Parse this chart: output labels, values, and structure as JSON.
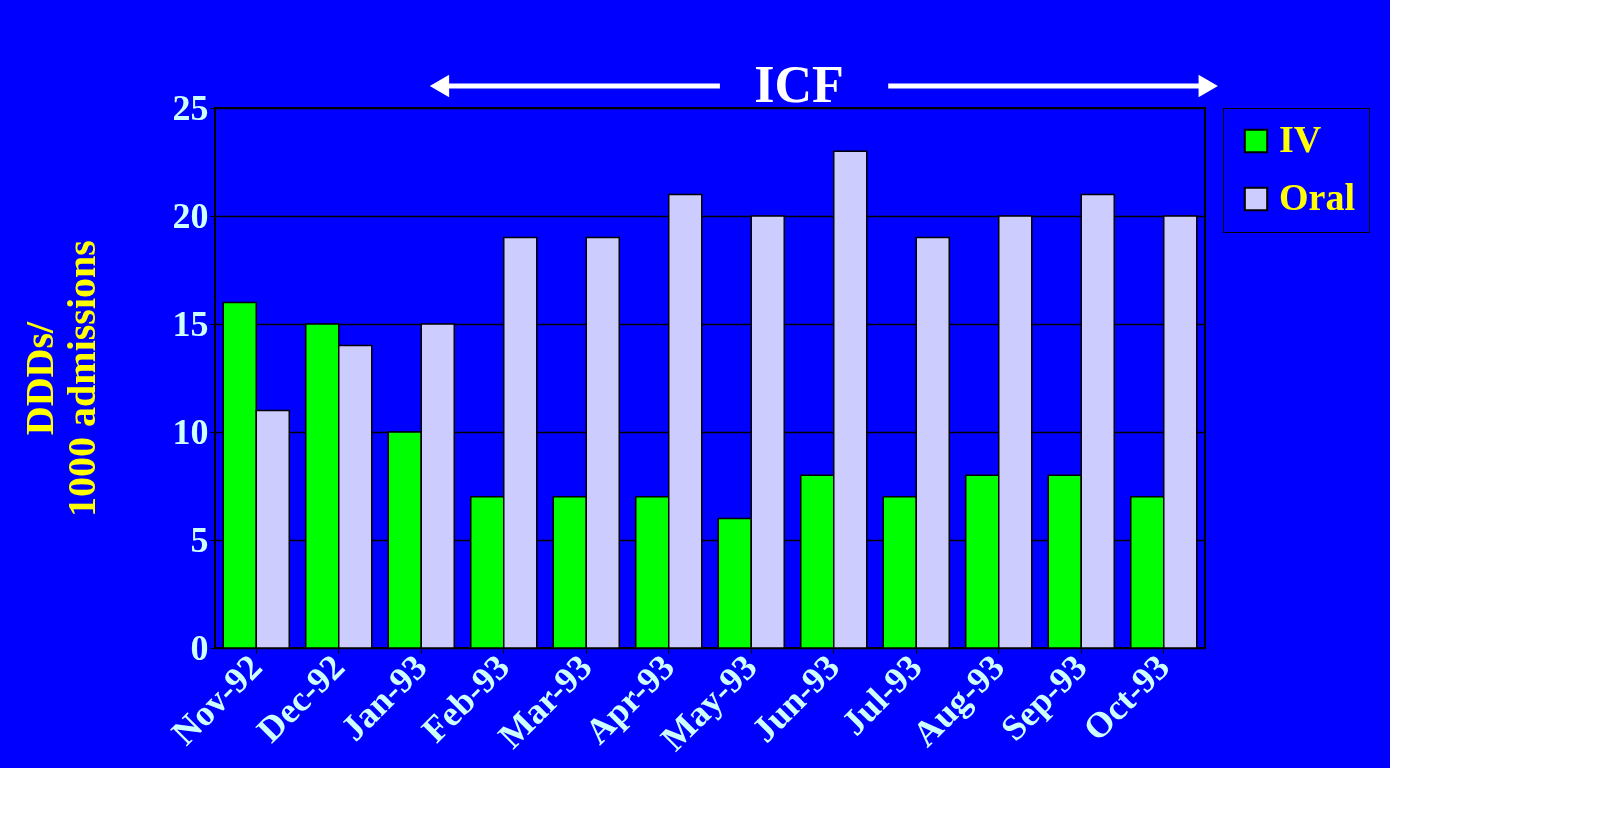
{
  "chart_data": {
    "type": "bar",
    "title": "ICF",
    "ylabel": "DDDs/\n1000 admissions",
    "categories": [
      "Nov-92",
      "Dec-92",
      "Jan-93",
      "Feb-93",
      "Mar-93",
      "Apr-93",
      "May-93",
      "Jun-93",
      "Jul-93",
      "Aug-93",
      "Sep-93",
      "Oct-93"
    ],
    "series": [
      {
        "name": "IV",
        "color": "#00ff00",
        "values": [
          16,
          15,
          10,
          7,
          7,
          7,
          6,
          8,
          7,
          8,
          8,
          7
        ]
      },
      {
        "name": "Oral",
        "color": "#ccccff",
        "values": [
          11,
          14,
          15,
          19,
          19,
          21,
          20,
          23,
          19,
          20,
          21,
          20
        ]
      }
    ],
    "ylim": [
      0,
      25
    ],
    "yticks": [
      0,
      5,
      10,
      15,
      20,
      25
    ],
    "grid": "y",
    "legend": "right"
  }
}
